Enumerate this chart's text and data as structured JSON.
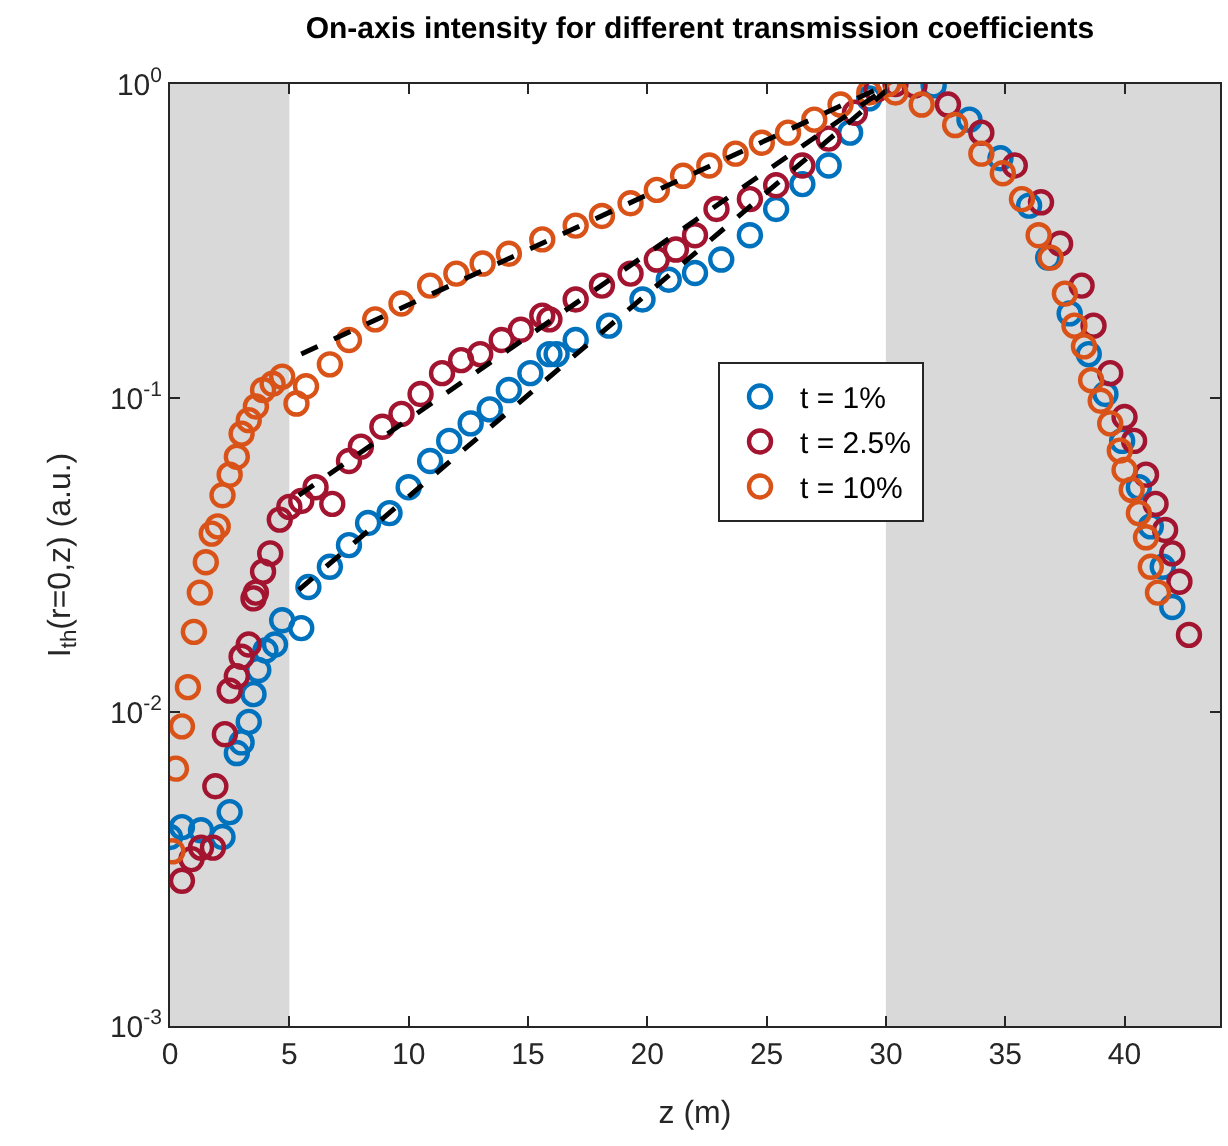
{
  "chart_data": {
    "type": "scatter",
    "title": "On-axis intensity for different transmission coefficients",
    "xlabel": "z (m)",
    "ylabel": "I$_{th}$(r=0,z) (a.u.)",
    "xlim": [
      0,
      44
    ],
    "xticks": [
      0,
      5,
      10,
      15,
      20,
      25,
      30,
      35,
      40
    ],
    "ylim": [
      0.001,
      1
    ],
    "yticks": [
      {
        "value": 0.001,
        "label": "10$^{-3}$"
      },
      {
        "value": 0.01,
        "label": "10$^{-2}$"
      },
      {
        "value": 0.1,
        "label": "10$^{-1}$"
      },
      {
        "value": 1,
        "label": "10$^{0}$"
      }
    ],
    "log": "y",
    "grid": false,
    "legend": "center",
    "marker": "circle",
    "bands": [
      {
        "axis": "x",
        "from": 0,
        "to": 5,
        "color": "#d9d9d9"
      },
      {
        "axis": "x",
        "from": 30,
        "to": 44,
        "color": "#d9d9d9"
      }
    ],
    "series": [
      {
        "name": "t = 1%",
        "color": "#0072bd",
        "x": [
          0,
          0.5,
          1.3,
          2.2,
          2.5,
          2.8,
          3.0,
          3.3,
          3.5,
          3.7,
          4.0,
          4.4,
          4.7,
          5.5,
          5.8,
          6.7,
          7.5,
          8.3,
          9.2,
          10,
          10.9,
          11.7,
          12.6,
          13.4,
          14.2,
          15.1,
          15.9,
          16.2,
          17,
          18.4,
          19.8,
          20.9,
          22,
          23.1,
          24.3,
          25.4,
          26.5,
          27.6,
          28.5,
          29.3,
          32,
          33.5,
          34.8,
          36,
          36.8,
          37.7,
          38.5,
          39.2,
          39.9,
          40.6,
          41.1,
          41.6,
          42
        ],
        "values": [
          0.004,
          0.0043,
          0.0042,
          0.004,
          0.0048,
          0.0074,
          0.008,
          0.0093,
          0.0114,
          0.0136,
          0.0157,
          0.0164,
          0.0196,
          0.0185,
          0.025,
          0.029,
          0.034,
          0.04,
          0.043,
          0.052,
          0.063,
          0.073,
          0.083,
          0.092,
          0.106,
          0.12,
          0.138,
          0.138,
          0.153,
          0.17,
          0.206,
          0.238,
          0.25,
          0.276,
          0.33,
          0.4,
          0.48,
          0.55,
          0.7,
          0.9,
          0.99,
          0.77,
          0.58,
          0.41,
          0.28,
          0.186,
          0.138,
          0.103,
          0.073,
          0.052,
          0.039,
          0.029,
          0.0216
        ]
      },
      {
        "name": "t = 2.5%",
        "color": "#a2142f",
        "x": [
          0.5,
          0.9,
          1.3,
          1.8,
          1.9,
          2.3,
          2.5,
          2.8,
          3.0,
          3.3,
          3.5,
          3.6,
          3.9,
          4.2,
          4.6,
          5,
          5.5,
          6.1,
          6.8,
          7.5,
          8,
          8.9,
          9.7,
          10.5,
          11.4,
          12.2,
          13,
          13.9,
          14.7,
          15.6,
          15.9,
          17,
          18.1,
          19.3,
          20.4,
          21.2,
          22,
          22.9,
          24.3,
          25.4,
          26.5,
          27.6,
          28.7,
          29.6,
          30.4,
          31.2,
          32.6,
          34,
          35.4,
          36.5,
          37.3,
          38.2,
          38.7,
          39.4,
          40,
          40.4,
          40.9,
          41.3,
          41.7,
          42,
          42.3,
          42.7
        ],
        "values": [
          0.0029,
          0.0034,
          0.0037,
          0.0037,
          0.0058,
          0.0085,
          0.0117,
          0.013,
          0.015,
          0.0164,
          0.023,
          0.024,
          0.028,
          0.032,
          0.041,
          0.045,
          0.047,
          0.052,
          0.046,
          0.063,
          0.07,
          0.081,
          0.089,
          0.103,
          0.12,
          0.132,
          0.138,
          0.153,
          0.165,
          0.183,
          0.178,
          0.206,
          0.228,
          0.249,
          0.276,
          0.297,
          0.33,
          0.4,
          0.43,
          0.476,
          0.55,
          0.67,
          0.81,
          0.96,
          1.0,
          0.99,
          0.86,
          0.7,
          0.55,
          0.42,
          0.31,
          0.228,
          0.17,
          0.12,
          0.087,
          0.073,
          0.057,
          0.046,
          0.038,
          0.032,
          0.026,
          0.0176
        ]
      },
      {
        "name": "t = 10%",
        "color": "#d95319",
        "x": [
          0.1,
          0.25,
          0.5,
          0.75,
          1.0,
          1.25,
          1.5,
          1.75,
          2.0,
          2.2,
          2.5,
          2.8,
          3.0,
          3.3,
          3.6,
          3.9,
          4.3,
          4.7,
          5.3,
          5.7,
          6.7,
          7.5,
          8.6,
          9.7,
          10.9,
          12,
          13.1,
          14.2,
          15.6,
          17,
          18.1,
          19.3,
          20.4,
          21.5,
          22.6,
          23.7,
          24.8,
          25.9,
          27,
          28.1,
          29.3,
          30.1,
          30.4,
          31.5,
          32.9,
          34,
          34.9,
          35.7,
          36.4,
          36.9,
          37.5,
          37.9,
          38.3,
          38.6,
          39,
          39.4,
          39.8,
          40,
          40.3,
          40.6,
          40.9,
          41.1,
          41.4
        ],
        "values": [
          0.0036,
          0.0066,
          0.009,
          0.012,
          0.018,
          0.024,
          0.03,
          0.037,
          0.039,
          0.049,
          0.057,
          0.065,
          0.077,
          0.085,
          0.094,
          0.106,
          0.111,
          0.117,
          0.096,
          0.109,
          0.128,
          0.153,
          0.178,
          0.2,
          0.228,
          0.249,
          0.268,
          0.288,
          0.32,
          0.354,
          0.38,
          0.417,
          0.46,
          0.51,
          0.55,
          0.6,
          0.65,
          0.7,
          0.77,
          0.86,
          0.94,
          1.0,
          0.94,
          0.86,
          0.74,
          0.6,
          0.52,
          0.43,
          0.33,
          0.28,
          0.215,
          0.17,
          0.146,
          0.114,
          0.098,
          0.083,
          0.068,
          0.059,
          0.051,
          0.043,
          0.036,
          0.029,
          0.024
        ]
      },
      {
        "type": "line",
        "marker": "none",
        "color": "#000000",
        "line_style": "dashed",
        "x": [
          5.5,
          30.1
        ],
        "values": [
          0.138,
          1.0
        ]
      },
      {
        "type": "line",
        "marker": "none",
        "color": "#000000",
        "line_style": "dashed",
        "x": [
          5.4,
          30
        ],
        "values": [
          0.049,
          0.97
        ]
      },
      {
        "type": "line",
        "marker": "none",
        "color": "#000000",
        "line_style": "dashed",
        "x": [
          5.4,
          30
        ],
        "values": [
          0.0245,
          0.95
        ]
      }
    ]
  }
}
